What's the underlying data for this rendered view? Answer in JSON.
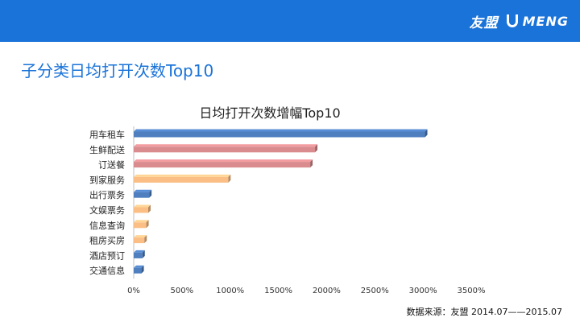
{
  "header": {
    "brand_cn": "友盟",
    "brand_en": "MENG"
  },
  "page": {
    "title": "子分类日均打开次数Top10"
  },
  "footer": {
    "source": "数据来源：友盟  2014.07——2015.07"
  },
  "colors": {
    "blue": "#4f7fbf",
    "pink": "#d98b8e",
    "orange": "#fbbf86",
    "header_bg": "#1a73d9"
  },
  "chart_data": {
    "type": "bar",
    "orientation": "horizontal",
    "title": "日均打开次数增幅Top10",
    "categories": [
      "用车租车",
      "生鲜配送",
      "订送餐",
      "到家服务",
      "出行票务",
      "文娱票务",
      "信息查询",
      "租房买房",
      "酒店预订",
      "交通信息"
    ],
    "values": [
      3020,
      1880,
      1830,
      980,
      160,
      150,
      130,
      110,
      90,
      80
    ],
    "unit": "%",
    "bar_colors": [
      "blue",
      "pink",
      "pink",
      "orange",
      "blue",
      "orange",
      "orange",
      "orange",
      "blue",
      "blue"
    ],
    "xlim": [
      0,
      3500
    ],
    "xticks": [
      0,
      500,
      1000,
      1500,
      2000,
      2500,
      3000,
      3500
    ],
    "xtick_labels": [
      "0%",
      "500%",
      "1000%",
      "1500%",
      "2000%",
      "2500%",
      "3000%",
      "3500%"
    ],
    "grid": false,
    "legend": "none"
  }
}
